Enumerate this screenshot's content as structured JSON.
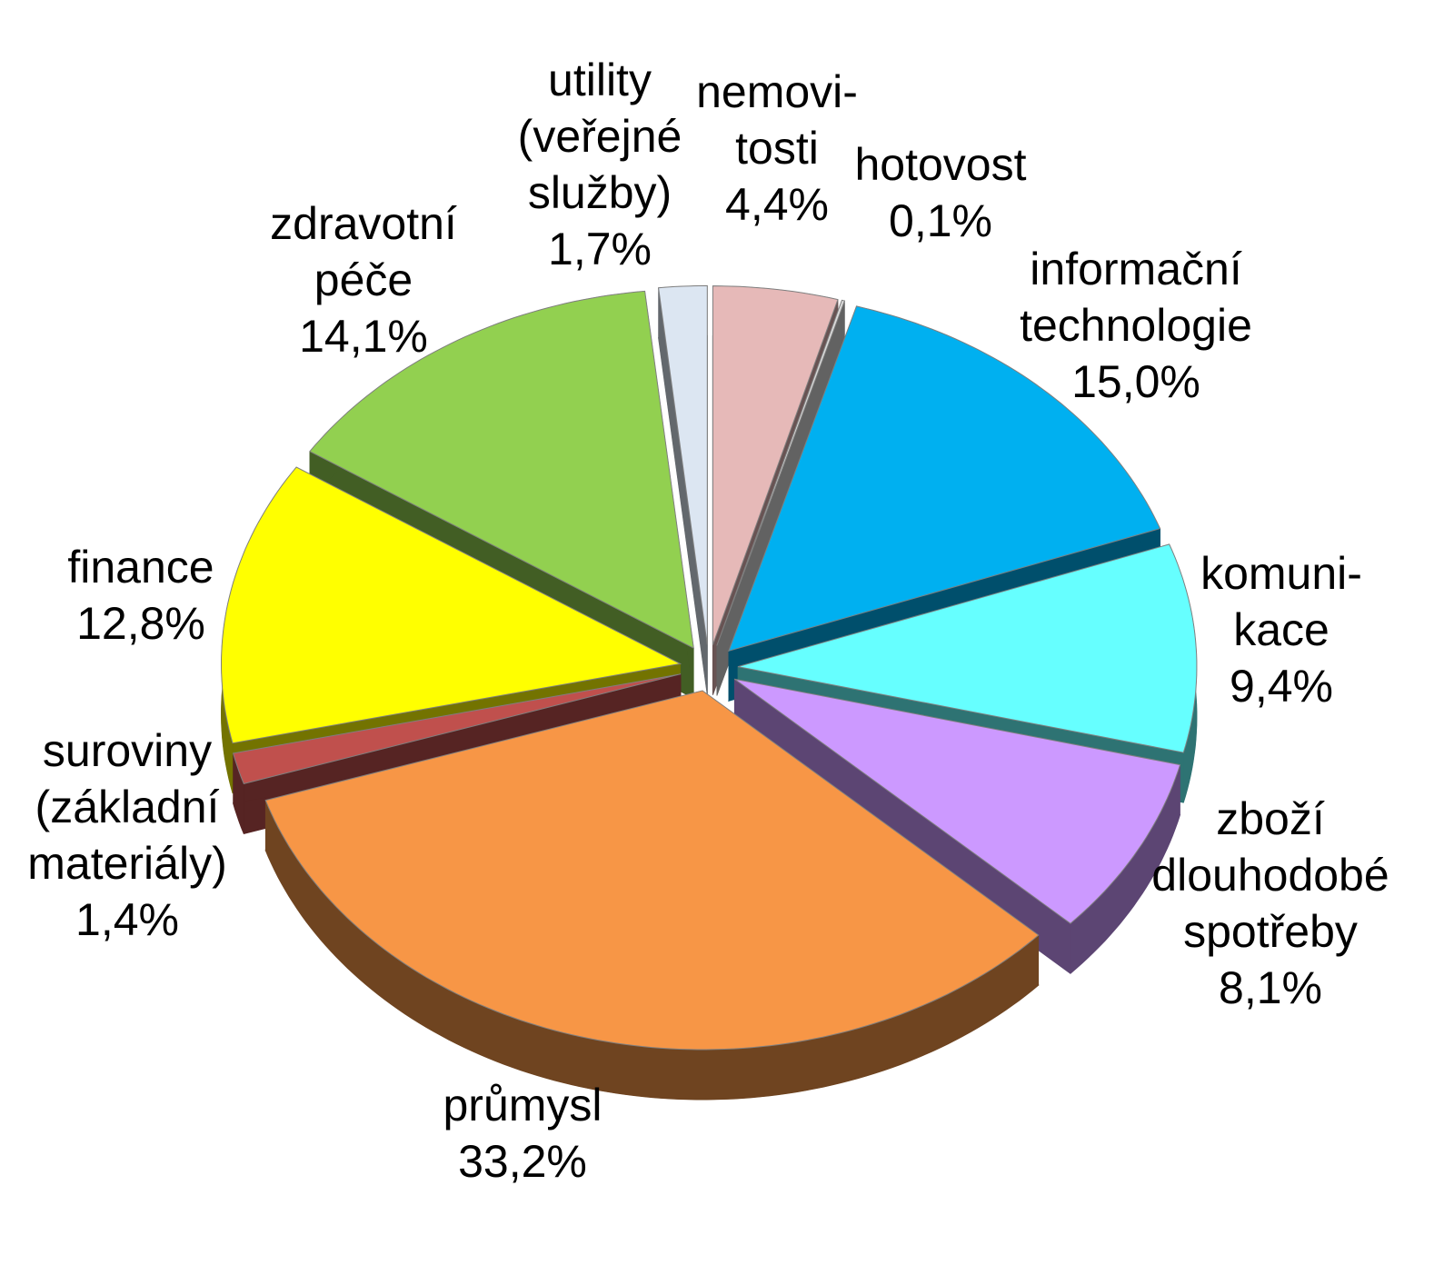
{
  "chart_data": {
    "type": "pie",
    "categories": [
      "nemovi-\ntosti",
      "hotovost",
      "informační\ntechnologie",
      "komuni-\nkace",
      "zboží\ndlouhodobé\nspotřeby",
      "průmysl",
      "suroviny\n(základní\nmateriály)",
      "finance",
      "zdravotní\npéče",
      "utility\n(veřejné\nslužby)"
    ],
    "values": [
      4.4,
      0.1,
      15.0,
      9.4,
      8.1,
      33.2,
      1.4,
      12.8,
      14.1,
      1.7
    ],
    "value_labels": [
      "4,4%",
      "0,1%",
      "15,0%",
      "9,4%",
      "8,1%",
      "33,2%",
      "1,4%",
      "12,8%",
      "14,1%",
      "1,7%"
    ],
    "colors": [
      "#e6b9b8",
      "#d9d9d9",
      "#00b0f0",
      "#66ffff",
      "#cc99ff",
      "#f79646",
      "#c0504d",
      "#ffff00",
      "#92d050",
      "#dce6f2"
    ]
  }
}
